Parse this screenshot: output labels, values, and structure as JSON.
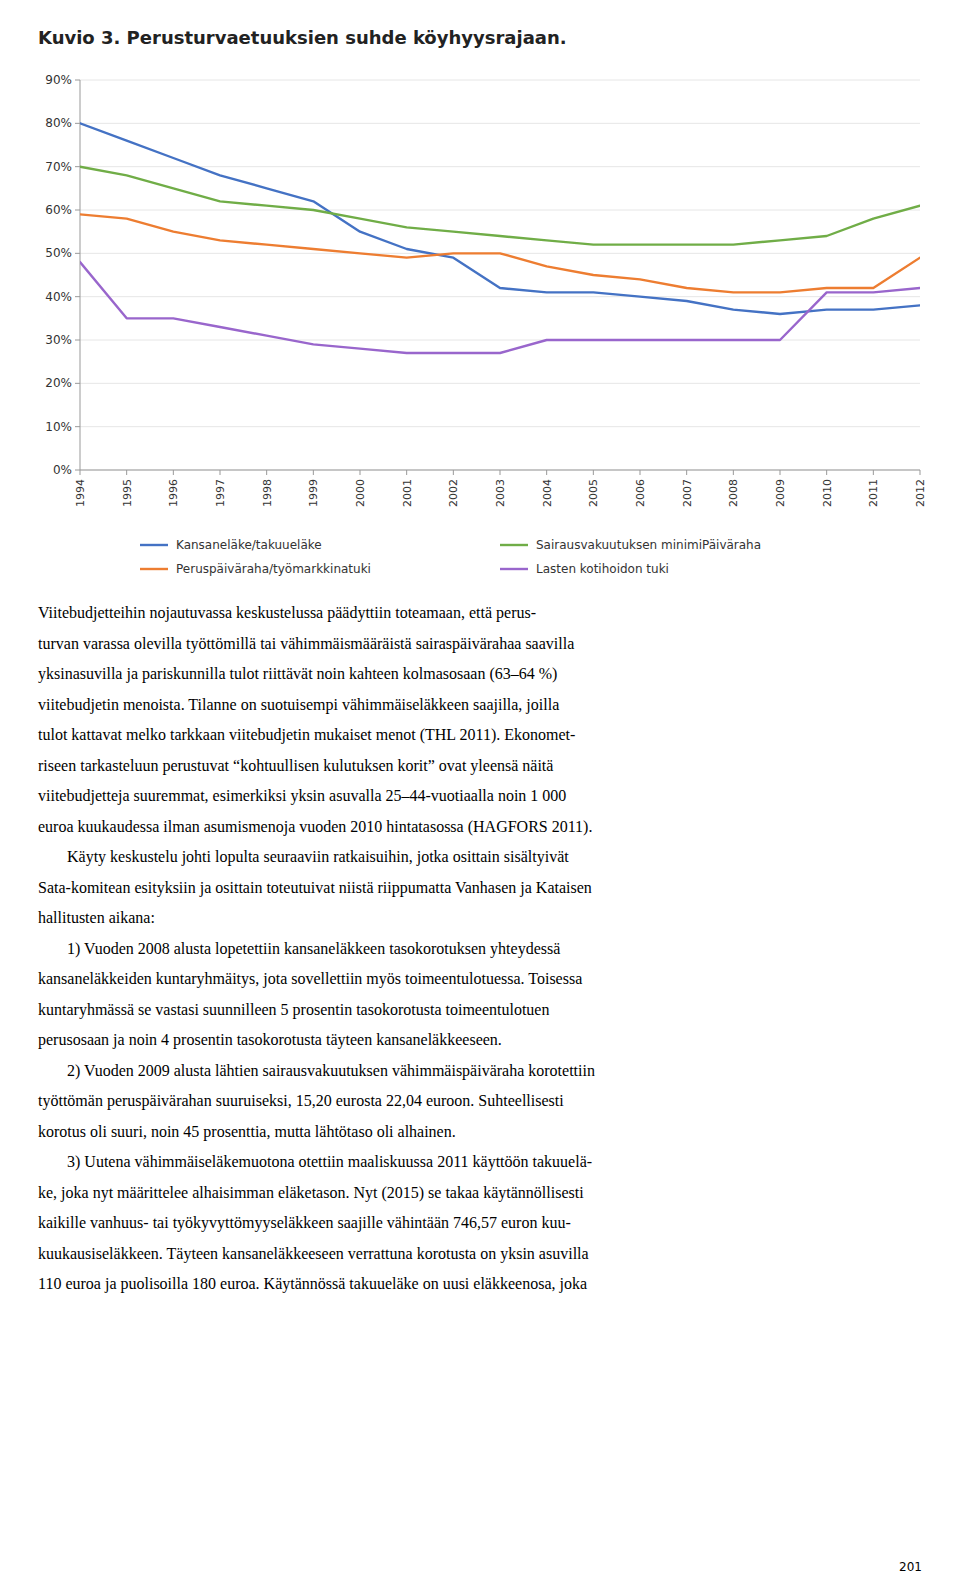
{
  "chart_data": {
    "type": "line",
    "title": "Kuvio 3. Perusturvaetuuksien suhde köyhyysrajaan.",
    "x": [
      1994,
      1995,
      1996,
      1997,
      1998,
      1999,
      2000,
      2001,
      2002,
      2003,
      2004,
      2005,
      2006,
      2007,
      2008,
      2009,
      2010,
      2011,
      2012
    ],
    "series": [
      {
        "name": "Kansaneläke/takuueläke",
        "color": "#4472c4",
        "values": [
          80,
          76,
          72,
          68,
          65,
          62,
          55,
          51,
          49,
          42,
          41,
          41,
          40,
          39,
          37,
          36,
          37,
          37,
          38
        ]
      },
      {
        "name": "Sairausvakuutuksen minimiPäiväraha",
        "color": "#70ad47",
        "values": [
          70,
          68,
          65,
          62,
          61,
          60,
          58,
          56,
          55,
          54,
          53,
          52,
          52,
          52,
          52,
          53,
          54,
          58,
          61
        ]
      },
      {
        "name": "Peruspäiväraha/työmarkkinatuki",
        "color": "#ed7d31",
        "values": [
          59,
          58,
          55,
          53,
          52,
          51,
          50,
          49,
          50,
          50,
          47,
          45,
          44,
          42,
          41,
          41,
          42,
          42,
          49
        ]
      },
      {
        "name": "Lasten kotihoidon tuki",
        "color": "#9966cc",
        "values": [
          48,
          35,
          35,
          33,
          31,
          29,
          28,
          27,
          27,
          27,
          30,
          30,
          30,
          30,
          30,
          30,
          41,
          41,
          42
        ]
      }
    ],
    "xlim": [
      1994,
      2012
    ],
    "xticks": [
      1994,
      1995,
      1996,
      1997,
      1998,
      1999,
      2000,
      2001,
      2002,
      2003,
      2004,
      2005,
      2006,
      2007,
      2008,
      2009,
      2010,
      2011,
      2012
    ],
    "ylim": [
      0,
      90
    ],
    "yticks": [
      {
        "value": 0,
        "label": "0%"
      },
      {
        "value": 10,
        "label": "10%"
      },
      {
        "value": 20,
        "label": "20%"
      },
      {
        "value": 30,
        "label": "30%"
      },
      {
        "value": 40,
        "label": "40%"
      },
      {
        "value": 50,
        "label": "50%"
      },
      {
        "value": 60,
        "label": "60%"
      },
      {
        "value": 70,
        "label": "70%"
      },
      {
        "value": 80,
        "label": "80%"
      },
      {
        "value": 90,
        "label": "90%"
      }
    ],
    "grid": true,
    "legend": "bottom",
    "annotations": [
      [
        "Viitebudjetteihin nojautuvassa keskustelussa päädyttiin toteamaan, että perus-",
        "turvan varassa olevilla työttömillä tai vähimmäismääräistä sairaspäivärahaa saavilla",
        "yksinasuvilla ja pariskunnilla tulot riittävät noin kahteen kolmasosaan (63–64 %)",
        "viitebudjetin menoista. Tilanne on suotuisempi vähimmäiseläkkeen saajilla, joilla",
        "tulot kattavat melko tarkkaan viitebudjetin mukaiset menot (THL 2011). Ekonomet-",
        "riseen tarkasteluun perustuvat “kohtuullisen kulutuksen korit” ovat yleensä näitä",
        "viitebudjetteja suuremmat, esimerkiksi yksin asuvalla 25–44-vuotiaalla noin 1 000",
        "euroa kuukaudessa ilman asumismenoja vuoden 2010 hintatasossa (HAGFORS 2011)."
      ],
      [
        "Käyty keskustelu johti lopulta seuraaviin ratkaisuihin, jotka osittain sisältyivät",
        "Sata-komitean esityksiin ja osittain toteutuivat niistä riippumatta Vanhasen ja Kataisen",
        "hallitusten aikana:"
      ],
      [
        "1) Vuoden 2008 alusta lopetettiin kansaneläkkeen tasokorotuksen yhteydessä",
        "kansaneläkkeiden kuntaryhmäitys, jota sovellettiin myös toimeentulotuessa. Toisessa",
        "kuntaryhmässä se vastasi suunnilleen 5 prosentin tasokorotusta toimeentulotuen",
        "perusosaan ja noin 4 prosentin tasokorotusta täyteen kansaneläkkeeseen."
      ],
      [
        "2) Vuoden 2009 alusta lähtien sairausvakuutuksen vähimmäispäiväraha korotettiin",
        "työttömän peruspäivärahan suuruiseksi, 15,20 eurosta 22,04 euroon. Suhteellisesti",
        "korotus oli suuri, noin 45 prosenttia, mutta lähtötaso oli alhainen."
      ],
      [
        "3) Uutena vähimmäiseläkemuotona otettiin maaliskuussa 2011 käyttöön takuuelä-",
        "ke, joka nyt määrittelee alhaisimman eläketason. Nyt (2015) se takaa käytännöllisesti",
        "kaikille vanhuus- tai työkyvyttömyyseläkkeen saajille vähintään 746,57 euron kuu-",
        "kuukausiseläkkeen. Täyteen kansaneläkkeeseen verrattuna korotusta on yksin asuvilla",
        "110 euroa ja puolisoilla 180 euroa. Käytännössä takuueläke on uusi eläkkeenosa, joka"
      ]
    ],
    "page_number": "201"
  }
}
